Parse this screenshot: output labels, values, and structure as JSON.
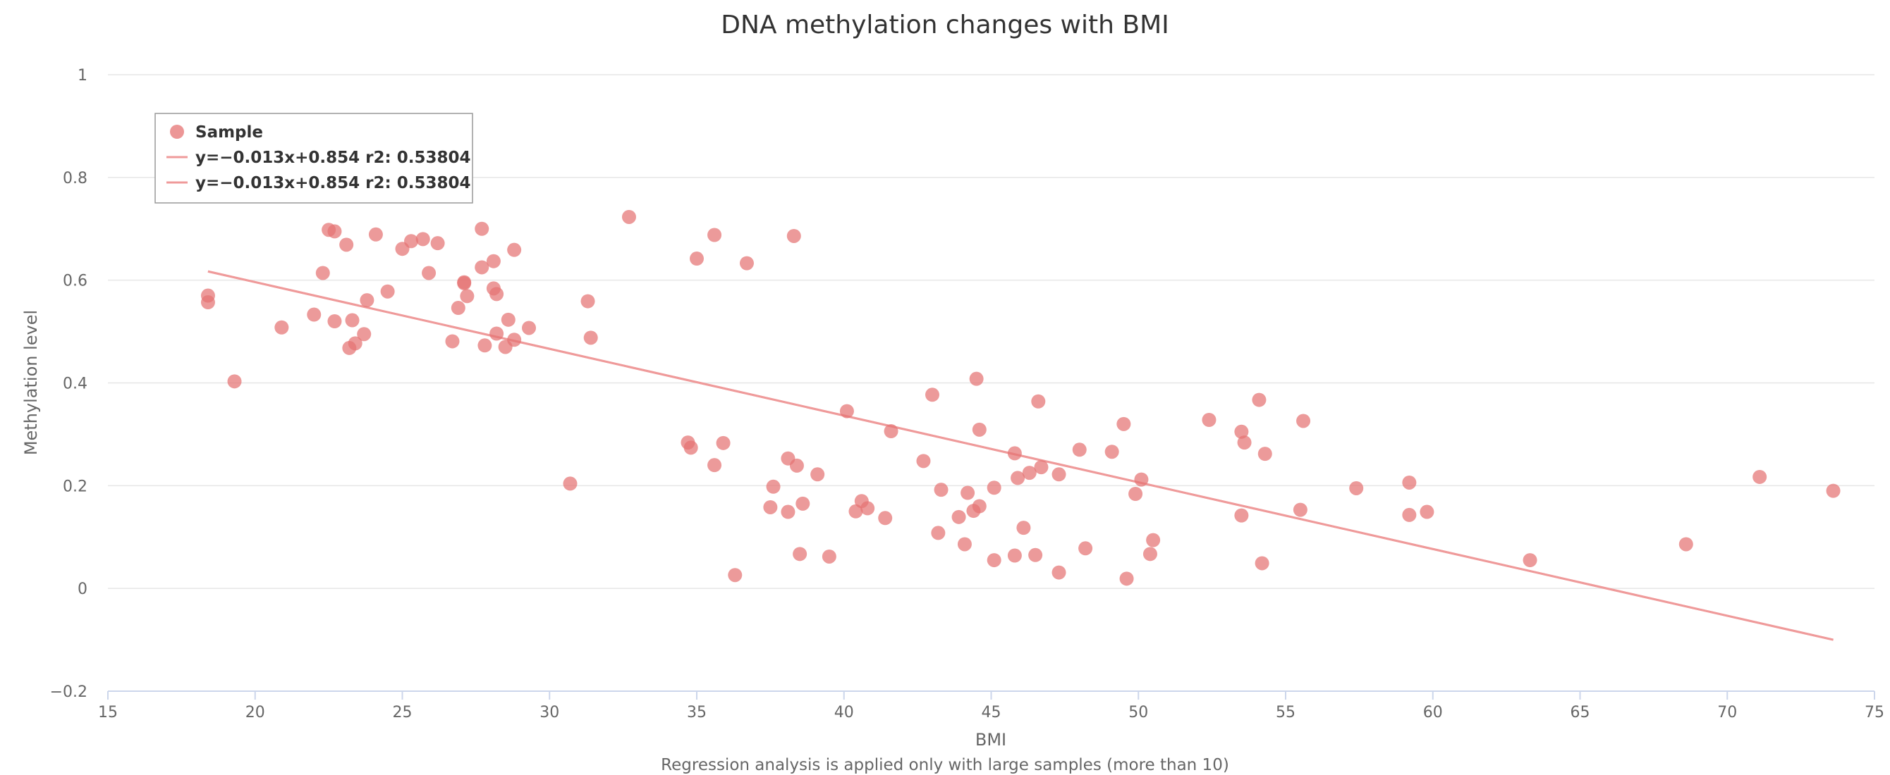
{
  "chart_data": {
    "type": "scatter",
    "title": "DNA methylation changes with BMI",
    "xlabel": "BMI",
    "ylabel": "Methylation level",
    "caption": "Regression analysis is applied only with large samples (more than 10)",
    "xlim": [
      15,
      75
    ],
    "ylim": [
      -0.2,
      1
    ],
    "xticks": [
      "15",
      "20",
      "25",
      "30",
      "35",
      "40",
      "45",
      "50",
      "55",
      "60",
      "65",
      "70",
      "75"
    ],
    "yticks": [
      "1",
      "0.8",
      "0.6",
      "0.4",
      "0.2",
      "0",
      "−0.2"
    ],
    "grid": "horizontal",
    "legend_position": "top-left",
    "colors": {
      "point": "#e57373",
      "line": "#ef9a9a"
    },
    "series": [
      {
        "name": "Sample",
        "kind": "scatter",
        "points": [
          [
            18.4,
            0.557
          ],
          [
            18.4,
            0.57
          ],
          [
            19.3,
            0.403
          ],
          [
            20.9,
            0.508
          ],
          [
            22.0,
            0.533
          ],
          [
            22.3,
            0.614
          ],
          [
            22.5,
            0.698
          ],
          [
            22.7,
            0.695
          ],
          [
            22.7,
            0.52
          ],
          [
            23.1,
            0.669
          ],
          [
            23.2,
            0.468
          ],
          [
            23.3,
            0.522
          ],
          [
            23.4,
            0.477
          ],
          [
            23.7,
            0.495
          ],
          [
            23.8,
            0.561
          ],
          [
            24.1,
            0.689
          ],
          [
            24.5,
            0.578
          ],
          [
            25.0,
            0.661
          ],
          [
            25.3,
            0.676
          ],
          [
            25.7,
            0.68
          ],
          [
            25.9,
            0.614
          ],
          [
            26.2,
            0.672
          ],
          [
            26.7,
            0.481
          ],
          [
            26.9,
            0.546
          ],
          [
            27.1,
            0.596
          ],
          [
            27.1,
            0.594
          ],
          [
            27.2,
            0.569
          ],
          [
            27.7,
            0.7
          ],
          [
            27.7,
            0.625
          ],
          [
            27.8,
            0.473
          ],
          [
            28.1,
            0.637
          ],
          [
            28.1,
            0.584
          ],
          [
            28.2,
            0.496
          ],
          [
            28.2,
            0.573
          ],
          [
            28.5,
            0.47
          ],
          [
            28.6,
            0.523
          ],
          [
            28.8,
            0.659
          ],
          [
            28.8,
            0.484
          ],
          [
            29.3,
            0.507
          ],
          [
            30.7,
            0.204
          ],
          [
            31.3,
            0.559
          ],
          [
            31.4,
            0.488
          ],
          [
            32.7,
            0.723
          ],
          [
            34.7,
            0.284
          ],
          [
            34.8,
            0.274
          ],
          [
            35.0,
            0.642
          ],
          [
            35.6,
            0.688
          ],
          [
            35.6,
            0.24
          ],
          [
            35.9,
            0.283
          ],
          [
            36.3,
            0.026
          ],
          [
            36.7,
            0.633
          ],
          [
            37.5,
            0.158
          ],
          [
            37.6,
            0.198
          ],
          [
            38.1,
            0.253
          ],
          [
            38.1,
            0.149
          ],
          [
            38.3,
            0.686
          ],
          [
            38.4,
            0.239
          ],
          [
            38.5,
            0.067
          ],
          [
            38.6,
            0.165
          ],
          [
            39.1,
            0.222
          ],
          [
            39.5,
            0.062
          ],
          [
            40.1,
            0.345
          ],
          [
            40.4,
            0.15
          ],
          [
            40.6,
            0.17
          ],
          [
            40.8,
            0.156
          ],
          [
            41.4,
            0.137
          ],
          [
            41.6,
            0.306
          ],
          [
            42.7,
            0.248
          ],
          [
            43.0,
            0.377
          ],
          [
            43.2,
            0.108
          ],
          [
            43.3,
            0.192
          ],
          [
            43.9,
            0.139
          ],
          [
            44.1,
            0.086
          ],
          [
            44.2,
            0.186
          ],
          [
            44.4,
            0.151
          ],
          [
            44.5,
            0.408
          ],
          [
            44.6,
            0.16
          ],
          [
            44.6,
            0.309
          ],
          [
            45.1,
            0.196
          ],
          [
            45.1,
            0.055
          ],
          [
            45.8,
            0.263
          ],
          [
            45.8,
            0.064
          ],
          [
            45.9,
            0.215
          ],
          [
            46.1,
            0.118
          ],
          [
            46.3,
            0.225
          ],
          [
            46.5,
            0.065
          ],
          [
            46.6,
            0.364
          ],
          [
            46.7,
            0.236
          ],
          [
            47.3,
            0.222
          ],
          [
            47.3,
            0.031
          ],
          [
            48.0,
            0.27
          ],
          [
            48.2,
            0.078
          ],
          [
            49.1,
            0.266
          ],
          [
            49.5,
            0.32
          ],
          [
            49.6,
            0.019
          ],
          [
            49.9,
            0.184
          ],
          [
            50.1,
            0.212
          ],
          [
            50.4,
            0.067
          ],
          [
            50.5,
            0.094
          ],
          [
            52.4,
            0.328
          ],
          [
            53.5,
            0.142
          ],
          [
            53.5,
            0.305
          ],
          [
            53.6,
            0.284
          ],
          [
            54.1,
            0.367
          ],
          [
            54.2,
            0.049
          ],
          [
            54.3,
            0.262
          ],
          [
            55.5,
            0.153
          ],
          [
            55.6,
            0.326
          ],
          [
            57.4,
            0.195
          ],
          [
            59.2,
            0.206
          ],
          [
            59.2,
            0.143
          ],
          [
            59.8,
            0.149
          ],
          [
            63.3,
            0.055
          ],
          [
            68.6,
            0.086
          ],
          [
            71.1,
            0.217
          ],
          [
            73.6,
            0.19
          ]
        ]
      },
      {
        "name": "y=−0.013x+0.854 r2: 0.53804",
        "kind": "line",
        "points": [
          [
            18.4,
            0.617
          ],
          [
            73.6,
            -0.1
          ]
        ]
      },
      {
        "name": "y=−0.013x+0.854 r2: 0.53804",
        "kind": "line",
        "points": [
          [
            18.4,
            0.617
          ],
          [
            73.6,
            -0.1
          ]
        ]
      }
    ]
  }
}
